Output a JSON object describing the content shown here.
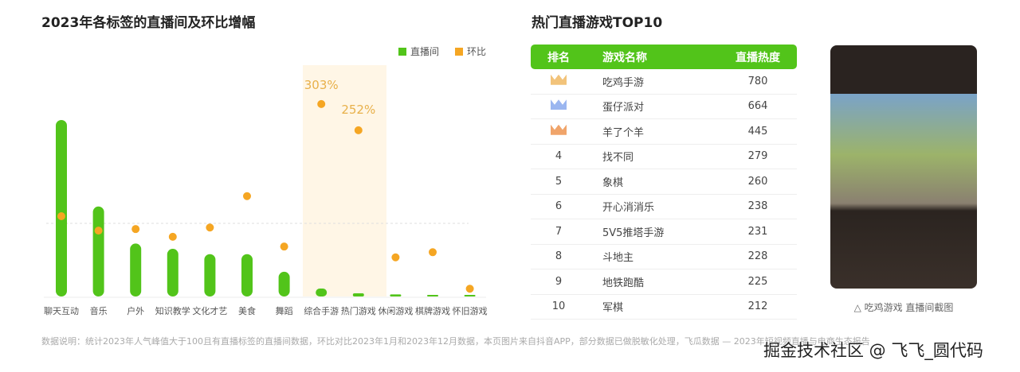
{
  "left_title": "2023年各标签的直播间及环比增幅",
  "right_title": "热门直播游戏TOP10",
  "chart_data": {
    "type": "bar+scatter",
    "title": "2023年各标签的直播间及环比增幅",
    "categories": [
      "聊天互动",
      "音乐",
      "户外",
      "知识教学",
      "文化才艺",
      "美食",
      "舞蹈",
      "综合手游",
      "热门游戏",
      "休闲游戏",
      "棋牌游戏",
      "怀旧游戏"
    ],
    "series": [
      {
        "name": "直播间",
        "type": "bar",
        "color": "#52c41a",
        "values": [
          100,
          51,
          30,
          27,
          24,
          24,
          14,
          4.5,
          1.8,
          1.2,
          0.6,
          0
        ]
      },
      {
        "name": "环比",
        "type": "scatter",
        "color": "#f5a623",
        "values": [
          85,
          57,
          60,
          45,
          63,
          124,
          26,
          303,
          252,
          5,
          15,
          -56
        ]
      }
    ],
    "annotations": [
      "303%",
      "252%"
    ],
    "legend": "top-right",
    "highlight": [
      "综合手游",
      "热门游戏"
    ]
  },
  "table": {
    "headers": [
      "排名",
      "游戏名称",
      "直播热度"
    ],
    "rows": [
      {
        "rank": "1",
        "name": "吃鸡手游",
        "value": "780",
        "crown": "#f2c37a"
      },
      {
        "rank": "2",
        "name": "蛋仔派对",
        "value": "664",
        "crown": "#9bb6f0"
      },
      {
        "rank": "3",
        "name": "羊了个羊",
        "value": "445",
        "crown": "#f0a46a"
      },
      {
        "rank": "4",
        "name": "找不同",
        "value": "279"
      },
      {
        "rank": "5",
        "name": "象棋",
        "value": "260"
      },
      {
        "rank": "6",
        "name": "开心消消乐",
        "value": "238"
      },
      {
        "rank": "7",
        "name": "5V5推塔手游",
        "value": "231"
      },
      {
        "rank": "8",
        "name": "斗地主",
        "value": "228"
      },
      {
        "rank": "9",
        "name": "地铁跑酷",
        "value": "225"
      },
      {
        "rank": "10",
        "name": "军棋",
        "value": "212"
      }
    ]
  },
  "caption": "△ 吃鸡游戏 直播间截图",
  "note": "数据说明：统计2023年人气峰值大于100且有直播标签的直播间数据，环比对比2023年1月和2023年12月数据，本页图片来自抖音APP，部分数据已做脱敏化处理，飞瓜数据 — 2023年短视频直播与电商生态报告",
  "watermark": "掘金技术社区 @ 飞飞_圆代码"
}
